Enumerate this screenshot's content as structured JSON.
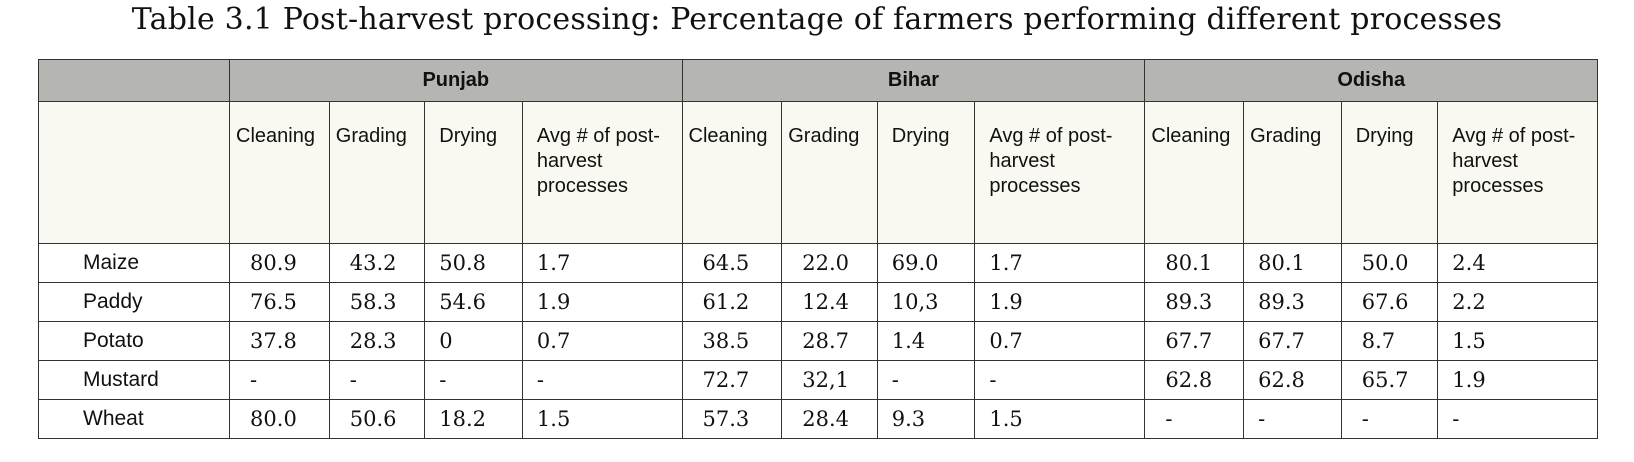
{
  "title": "Table 3.1 Post-harvest processing: Percentage of farmers performing different processes",
  "states": [
    "Punjab",
    "Bihar",
    "Odisha"
  ],
  "subheaders": [
    "Cleaning",
    "Grading",
    "Drying",
    "Avg # of post-harvest processes"
  ],
  "rows": [
    {
      "crop": "Maize",
      "values": [
        "80.9",
        "43.2",
        "50.8",
        "1.7",
        "64.5",
        "22.0",
        "69.0",
        "1.7",
        "80.1",
        "80.1",
        "50.0",
        "2.4"
      ]
    },
    {
      "crop": "Paddy",
      "values": [
        "76.5",
        "58.3",
        "54.6",
        "1.9",
        "61.2",
        "12.4",
        "10,3",
        "1.9",
        "89.3",
        "89.3",
        "67.6",
        "2.2"
      ]
    },
    {
      "crop": "Potato",
      "values": [
        "37.8",
        "28.3",
        "0",
        "0.7",
        "38.5",
        "28.7",
        "1.4",
        "0.7",
        "67.7",
        "67.7",
        "8.7",
        "1.5"
      ]
    },
    {
      "crop": "Mustard",
      "values": [
        "-",
        "-",
        "-",
        "-",
        "72.7",
        "32,1",
        "-",
        "-",
        "62.8",
        "62.8",
        "65.7",
        "1.9"
      ]
    },
    {
      "crop": "Wheat",
      "values": [
        "80.0",
        "50.6",
        "18.2",
        "1.5",
        "57.3",
        "28.4",
        "9.3",
        "1.5",
        "-",
        "-",
        "-",
        "-"
      ]
    }
  ]
}
